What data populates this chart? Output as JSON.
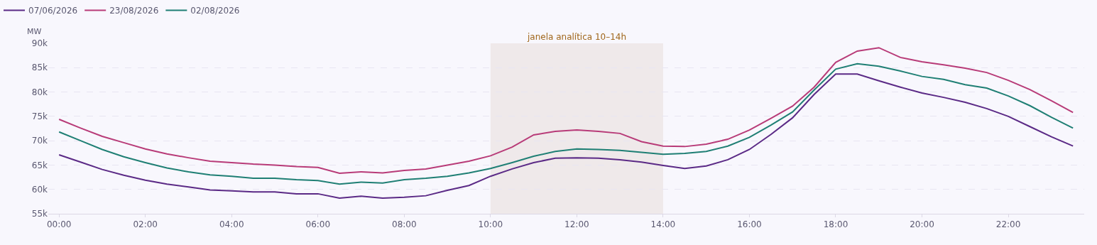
{
  "chart_data": {
    "type": "line",
    "ylabel": "MW",
    "x": [
      0,
      0.5,
      1,
      1.5,
      2,
      2.5,
      3,
      3.5,
      4,
      4.5,
      5,
      5.5,
      6,
      6.5,
      7,
      7.5,
      8,
      8.5,
      9,
      9.5,
      10,
      10.5,
      11,
      11.5,
      12,
      12.5,
      13,
      13.5,
      14,
      14.5,
      15,
      15.5,
      16,
      16.5,
      17,
      17.5,
      18,
      18.5,
      19,
      19.5,
      20,
      20.5,
      21,
      21.5,
      22,
      22.5,
      23,
      23.5
    ],
    "series": [
      {
        "name": "07/06/2026",
        "color": "#5b2a86",
        "values": [
          67100,
          65600,
          64100,
          62900,
          61900,
          61100,
          60500,
          59900,
          59700,
          59500,
          59500,
          59100,
          59100,
          58200,
          58600,
          58200,
          58400,
          58700,
          59800,
          60800,
          62700,
          64200,
          65500,
          66400,
          66500,
          66400,
          66100,
          65600,
          64900,
          64300,
          64800,
          66100,
          68200,
          71300,
          74700,
          79500,
          83700,
          83700,
          82300,
          81000,
          79800,
          78900,
          77900,
          76600,
          75000,
          72900,
          70800,
          68900
        ]
      },
      {
        "name": "23/08/2026",
        "color": "#b83b78",
        "values": [
          74400,
          72600,
          70900,
          69600,
          68300,
          67300,
          66500,
          65800,
          65500,
          65200,
          65000,
          64700,
          64500,
          63300,
          63600,
          63400,
          63900,
          64200,
          65000,
          65800,
          66900,
          68700,
          71200,
          71900,
          72200,
          71900,
          71500,
          69800,
          68900,
          68800,
          69300,
          70300,
          72200,
          74600,
          77100,
          81000,
          86100,
          88400,
          89100,
          87100,
          86200,
          85600,
          84900,
          84000,
          82400,
          80500,
          78200,
          75800
        ]
      },
      {
        "name": "02/08/2026",
        "color": "#1f7f74",
        "values": [
          71800,
          70000,
          68200,
          66700,
          65500,
          64400,
          63600,
          63000,
          62700,
          62300,
          62300,
          62000,
          61800,
          61100,
          61500,
          61300,
          62000,
          62300,
          62700,
          63400,
          64300,
          65500,
          66800,
          67800,
          68300,
          68200,
          68000,
          67600,
          67200,
          67400,
          67800,
          68900,
          70700,
          73200,
          75900,
          80400,
          84700,
          85800,
          85300,
          84300,
          83200,
          82600,
          81500,
          80800,
          79200,
          77200,
          74800,
          72600
        ]
      }
    ],
    "xlim": [
      -0.25,
      23.76
    ],
    "xticks": [
      {
        "value": 0,
        "label": "00:00"
      },
      {
        "value": 2,
        "label": "02:00"
      },
      {
        "value": 4,
        "label": "04:00"
      },
      {
        "value": 6,
        "label": "06:00"
      },
      {
        "value": 8,
        "label": "08:00"
      },
      {
        "value": 10,
        "label": "10:00"
      },
      {
        "value": 12,
        "label": "12:00"
      },
      {
        "value": 14,
        "label": "14:00"
      },
      {
        "value": 16,
        "label": "16:00"
      },
      {
        "value": 18,
        "label": "18:00"
      },
      {
        "value": 20,
        "label": "20:00"
      },
      {
        "value": 22,
        "label": "22:00"
      }
    ],
    "ylim": [
      55000,
      90000
    ],
    "yticks": [
      {
        "value": 55000,
        "label": "55k"
      },
      {
        "value": 60000,
        "label": "60k"
      },
      {
        "value": 65000,
        "label": "65k"
      },
      {
        "value": 70000,
        "label": "70k"
      },
      {
        "value": 75000,
        "label": "75k"
      },
      {
        "value": 80000,
        "label": "80k"
      },
      {
        "value": 85000,
        "label": "85k"
      },
      {
        "value": 90000,
        "label": "90k"
      }
    ],
    "bands": [
      {
        "axis": "x",
        "from": 10,
        "to": 14,
        "label": "janela analítica 10–14h",
        "color": "#efe9ea"
      }
    ],
    "grid": "y",
    "legend": "top left",
    "marker": "none",
    "line_style": "solid"
  }
}
